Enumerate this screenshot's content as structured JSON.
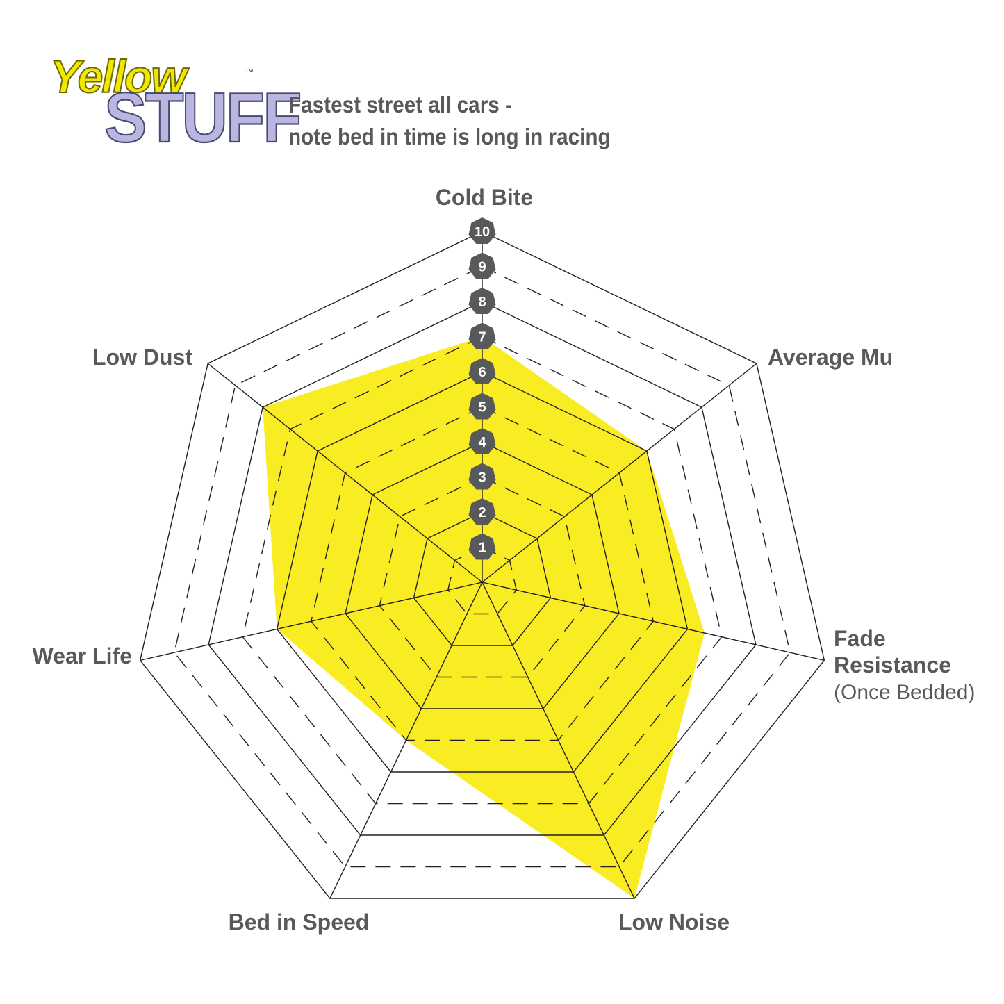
{
  "logo": {
    "line1": "Yellow",
    "line2": "STUFF",
    "tm": "™"
  },
  "title": {
    "line1": "Fastest street all cars -",
    "line2": "note bed in time is long in racing"
  },
  "colors": {
    "fill": "#f9ec22",
    "grid": "#231f20",
    "badge": "#58595b",
    "text": "#58595b"
  },
  "chart_data": {
    "type": "radar",
    "axes": [
      {
        "label": "Cold Bite",
        "sub": ""
      },
      {
        "label": "Average Mu",
        "sub": ""
      },
      {
        "label": "Fade Resistance",
        "label2": "Resistance",
        "label1": "Fade",
        "sub": "(Once Bedded)"
      },
      {
        "label": "Low Noise",
        "sub": ""
      },
      {
        "label": "Bed in Speed",
        "sub": ""
      },
      {
        "label": "Wear Life",
        "sub": ""
      },
      {
        "label": "Low Dust",
        "sub": ""
      }
    ],
    "values": [
      7,
      6,
      6.5,
      10,
      5,
      6,
      8
    ],
    "range": [
      0,
      10
    ],
    "scale_ticks": [
      "1",
      "2",
      "3",
      "4",
      "5",
      "6",
      "7",
      "8",
      "9",
      "10"
    ],
    "grid": "solid even rings, dashed odd rings"
  }
}
